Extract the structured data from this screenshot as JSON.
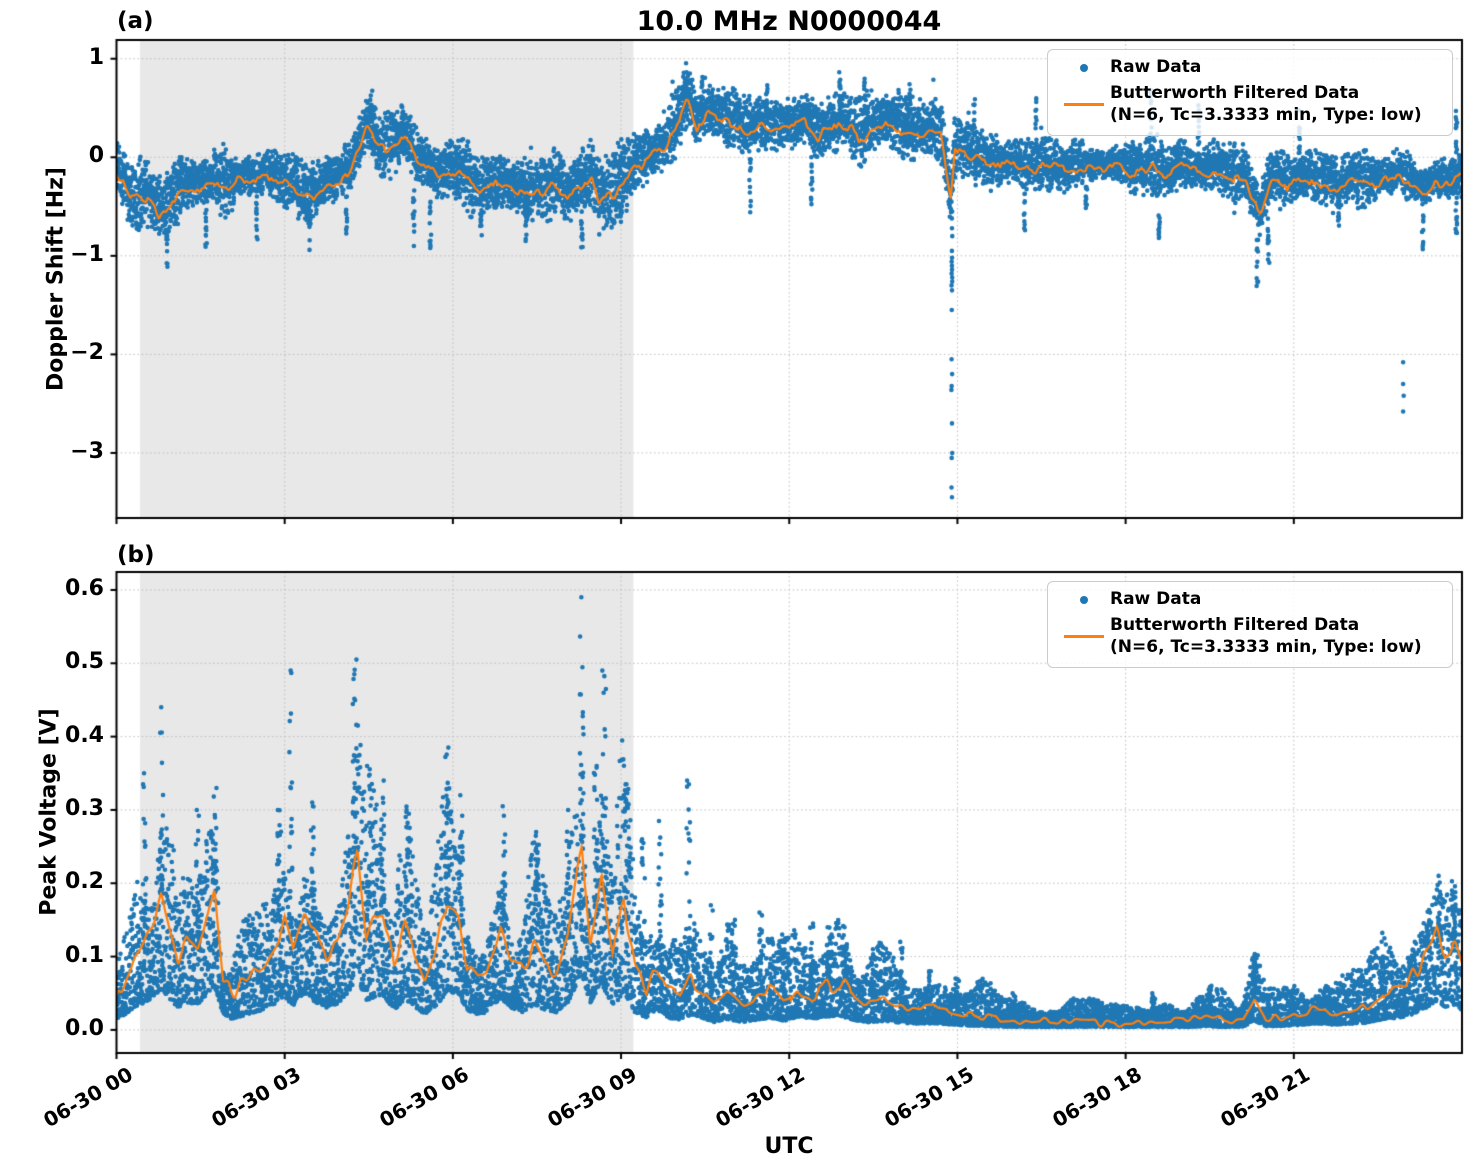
{
  "figure": {
    "title": "10.0 MHz N0000044",
    "xlabel": "UTC",
    "panel_a_tag": "(a)",
    "panel_b_tag": "(b)",
    "shaded_region_hours": {
      "t0": 0.42,
      "t1": 9.22
    }
  },
  "legend": {
    "raw_label": "Raw Data",
    "filtered_label_line1": "Butterworth Filtered Data",
    "filtered_label_line2": "(N=6, Tc=3.3333 min, Type: low)"
  },
  "colors": {
    "raw": "#1f77b4",
    "filtered": "#ff7f0e",
    "shade": "#e8e8e8",
    "grid": "#bdbdbd",
    "spine": "#000000"
  },
  "chart_data": [
    {
      "type": "scatter",
      "name": "doppler",
      "ylabel": "Doppler Shift [Hz]",
      "ylim": [
        -3.66,
        1.19
      ],
      "yticks": [
        1,
        0,
        -1,
        -2,
        -3
      ],
      "ytick_labels": [
        "1",
        "0",
        "−1",
        "−2",
        "−3"
      ],
      "xlim_hours": [
        0,
        24
      ],
      "xticks_hours": [
        0,
        3,
        6,
        9,
        12,
        15,
        18,
        21
      ],
      "xtick_labels": [
        "06-30 00",
        "06-30 03",
        "06-30 06",
        "06-30 09",
        "06-30 12",
        "06-30 15",
        "06-30 18",
        "06-30 21"
      ],
      "series": [
        {
          "name": "Raw Data",
          "style": "scatter"
        },
        {
          "name": "Butterworth Filtered Data (N=6, Tc=3.3333 min, Type: low)",
          "style": "line"
        }
      ],
      "filtered_keypoints": [
        [
          0,
          -0.15
        ],
        [
          0.25,
          -0.42
        ],
        [
          0.5,
          -0.38
        ],
        [
          0.75,
          -0.55
        ],
        [
          0.95,
          -0.5
        ],
        [
          1.1,
          -0.38
        ],
        [
          1.35,
          -0.32
        ],
        [
          1.6,
          -0.3
        ],
        [
          1.8,
          -0.25
        ],
        [
          2.0,
          -0.32
        ],
        [
          2.2,
          -0.22
        ],
        [
          2.45,
          -0.25
        ],
        [
          2.7,
          -0.2
        ],
        [
          2.9,
          -0.28
        ],
        [
          3.1,
          -0.3
        ],
        [
          3.35,
          -0.42
        ],
        [
          3.55,
          -0.38
        ],
        [
          3.8,
          -0.28
        ],
        [
          4.0,
          -0.22
        ],
        [
          4.2,
          -0.1
        ],
        [
          4.45,
          0.28
        ],
        [
          4.6,
          0.2
        ],
        [
          4.8,
          0.05
        ],
        [
          5.0,
          0.12
        ],
        [
          5.15,
          0.2
        ],
        [
          5.35,
          -0.02
        ],
        [
          5.55,
          -0.12
        ],
        [
          5.75,
          -0.2
        ],
        [
          5.95,
          -0.12
        ],
        [
          6.15,
          -0.18
        ],
        [
          6.35,
          -0.3
        ],
        [
          6.6,
          -0.34
        ],
        [
          6.8,
          -0.28
        ],
        [
          7.0,
          -0.32
        ],
        [
          7.2,
          -0.36
        ],
        [
          7.45,
          -0.4
        ],
        [
          7.65,
          -0.32
        ],
        [
          7.85,
          -0.28
        ],
        [
          8.05,
          -0.42
        ],
        [
          8.25,
          -0.3
        ],
        [
          8.45,
          -0.22
        ],
        [
          8.6,
          -0.42
        ],
        [
          8.8,
          -0.38
        ],
        [
          9.0,
          -0.3
        ],
        [
          9.2,
          -0.12
        ],
        [
          9.5,
          -0.02
        ],
        [
          9.8,
          0.12
        ],
        [
          10.0,
          0.3
        ],
        [
          10.2,
          0.6
        ],
        [
          10.35,
          0.32
        ],
        [
          10.55,
          0.45
        ],
        [
          10.75,
          0.38
        ],
        [
          11.0,
          0.32
        ],
        [
          11.25,
          0.28
        ],
        [
          11.5,
          0.3
        ],
        [
          11.75,
          0.26
        ],
        [
          12.0,
          0.28
        ],
        [
          12.25,
          0.36
        ],
        [
          12.5,
          0.22
        ],
        [
          12.75,
          0.28
        ],
        [
          13.0,
          0.32
        ],
        [
          13.25,
          0.18
        ],
        [
          13.5,
          0.3
        ],
        [
          13.75,
          0.34
        ],
        [
          14.0,
          0.28
        ],
        [
          14.25,
          0.2
        ],
        [
          14.5,
          0.26
        ],
        [
          14.7,
          0.22
        ],
        [
          14.88,
          -0.45
        ],
        [
          14.95,
          0.05
        ],
        [
          15.1,
          0.08
        ],
        [
          15.3,
          0.0
        ],
        [
          15.55,
          -0.06
        ],
        [
          15.8,
          -0.1
        ],
        [
          16.0,
          -0.08
        ],
        [
          16.3,
          -0.14
        ],
        [
          16.6,
          -0.1
        ],
        [
          16.9,
          -0.15
        ],
        [
          17.2,
          -0.1
        ],
        [
          17.5,
          -0.13
        ],
        [
          17.8,
          -0.1
        ],
        [
          18.1,
          -0.16
        ],
        [
          18.4,
          -0.1
        ],
        [
          18.7,
          -0.18
        ],
        [
          19.0,
          -0.12
        ],
        [
          19.3,
          -0.18
        ],
        [
          19.6,
          -0.14
        ],
        [
          19.9,
          -0.2
        ],
        [
          20.15,
          -0.25
        ],
        [
          20.4,
          -0.6
        ],
        [
          20.6,
          -0.22
        ],
        [
          20.9,
          -0.28
        ],
        [
          21.2,
          -0.22
        ],
        [
          21.5,
          -0.25
        ],
        [
          21.8,
          -0.3
        ],
        [
          22.1,
          -0.25
        ],
        [
          22.4,
          -0.28
        ],
        [
          22.7,
          -0.24
        ],
        [
          23.0,
          -0.22
        ],
        [
          23.3,
          -0.38
        ],
        [
          23.55,
          -0.25
        ],
        [
          23.8,
          -0.28
        ],
        [
          24,
          -0.18
        ]
      ],
      "band_halfwidth_keypoints": [
        [
          0,
          0.42
        ],
        [
          9,
          0.42
        ],
        [
          10,
          0.4
        ],
        [
          15,
          0.4
        ],
        [
          16,
          0.33
        ],
        [
          24,
          0.33
        ]
      ],
      "up_spikes": [
        [
          4.55,
          0.68
        ],
        [
          5.1,
          0.55
        ],
        [
          10.15,
          0.97
        ],
        [
          10.45,
          0.82
        ],
        [
          11.6,
          0.75
        ],
        [
          12.9,
          0.88
        ],
        [
          13.35,
          0.8
        ],
        [
          14.15,
          0.82
        ],
        [
          15.3,
          0.6
        ],
        [
          16.4,
          0.62
        ],
        [
          18.45,
          0.72
        ],
        [
          19.3,
          0.55
        ],
        [
          21.1,
          0.5
        ],
        [
          23.9,
          0.52
        ]
      ],
      "down_spikes": [
        [
          0.9,
          -1.12
        ],
        [
          1.6,
          -0.97
        ],
        [
          2.5,
          -0.85
        ],
        [
          3.45,
          -0.95
        ],
        [
          4.1,
          -0.8
        ],
        [
          5.3,
          -0.92
        ],
        [
          5.6,
          -1.02
        ],
        [
          6.5,
          -0.88
        ],
        [
          7.3,
          -0.87
        ],
        [
          8.3,
          -0.97
        ],
        [
          9.0,
          -0.8
        ],
        [
          11.3,
          -0.58
        ],
        [
          12.4,
          -0.5
        ],
        [
          16.2,
          -0.76
        ],
        [
          17.3,
          -0.6
        ],
        [
          18.6,
          -0.82
        ],
        [
          20.35,
          -1.35
        ],
        [
          20.55,
          -1.12
        ],
        [
          21.8,
          -0.7
        ],
        [
          23.3,
          -0.97
        ],
        [
          23.9,
          -0.8
        ]
      ],
      "dropout_column": {
        "t": 14.9,
        "values": [
          -0.55,
          -0.62,
          -0.72,
          -0.8,
          -0.95,
          -1.02,
          -1.06,
          -1.1,
          -1.14,
          -1.18,
          -1.22,
          -1.26,
          -1.3,
          -1.35,
          -1.55,
          -2.05,
          -2.2,
          -2.32,
          -2.36,
          -2.7,
          -3.0,
          -3.05,
          -3.35,
          -3.45
        ]
      },
      "isolated_outliers": [
        [
          22.95,
          -2.08
        ],
        [
          22.95,
          -2.3
        ],
        [
          22.96,
          -2.42
        ],
        [
          22.95,
          -2.58
        ]
      ]
    },
    {
      "type": "scatter",
      "name": "peak_voltage",
      "ylabel": "Peak Voltage [V]",
      "ylim": [
        -0.0315,
        0.6245
      ],
      "yticks": [
        0.6,
        0.5,
        0.4,
        0.3,
        0.2,
        0.1,
        0.0
      ],
      "ytick_labels": [
        "0.6",
        "0.5",
        "0.4",
        "0.3",
        "0.2",
        "0.1",
        "0.0"
      ],
      "xlim_hours": [
        0,
        24
      ],
      "xticks_hours": [
        0,
        3,
        6,
        9,
        12,
        15,
        18,
        21
      ],
      "xtick_labels": [
        "06-30 00",
        "06-30 03",
        "06-30 06",
        "06-30 09",
        "06-30 12",
        "06-30 15",
        "06-30 18",
        "06-30 21"
      ],
      "series": [
        {
          "name": "Raw Data",
          "style": "scatter"
        },
        {
          "name": "Butterworth Filtered Data (N=6, Tc=3.3333 min, Type: low)",
          "style": "line"
        }
      ],
      "filtered_keypoints": [
        [
          0,
          0.045
        ],
        [
          0.2,
          0.08
        ],
        [
          0.4,
          0.11
        ],
        [
          0.6,
          0.14
        ],
        [
          0.8,
          0.185
        ],
        [
          0.95,
          0.14
        ],
        [
          1.1,
          0.1
        ],
        [
          1.25,
          0.125
        ],
        [
          1.45,
          0.115
        ],
        [
          1.6,
          0.16
        ],
        [
          1.75,
          0.2
        ],
        [
          1.9,
          0.07
        ],
        [
          2.05,
          0.05
        ],
        [
          2.2,
          0.06
        ],
        [
          2.4,
          0.075
        ],
        [
          2.6,
          0.09
        ],
        [
          2.8,
          0.115
        ],
        [
          3.0,
          0.15
        ],
        [
          3.15,
          0.11
        ],
        [
          3.35,
          0.17
        ],
        [
          3.55,
          0.125
        ],
        [
          3.75,
          0.1
        ],
        [
          3.95,
          0.12
        ],
        [
          4.15,
          0.175
        ],
        [
          4.3,
          0.245
        ],
        [
          4.45,
          0.12
        ],
        [
          4.6,
          0.15
        ],
        [
          4.75,
          0.16
        ],
        [
          4.95,
          0.09
        ],
        [
          5.15,
          0.14
        ],
        [
          5.35,
          0.1
        ],
        [
          5.5,
          0.07
        ],
        [
          5.7,
          0.11
        ],
        [
          5.9,
          0.17
        ],
        [
          6.1,
          0.165
        ],
        [
          6.25,
          0.09
        ],
        [
          6.45,
          0.07
        ],
        [
          6.6,
          0.08
        ],
        [
          6.85,
          0.145
        ],
        [
          7.05,
          0.1
        ],
        [
          7.25,
          0.08
        ],
        [
          7.45,
          0.115
        ],
        [
          7.65,
          0.09
        ],
        [
          7.85,
          0.08
        ],
        [
          8.05,
          0.125
        ],
        [
          8.3,
          0.255
        ],
        [
          8.45,
          0.12
        ],
        [
          8.65,
          0.215
        ],
        [
          8.85,
          0.1
        ],
        [
          9.05,
          0.175
        ],
        [
          9.25,
          0.08
        ],
        [
          9.45,
          0.055
        ],
        [
          9.65,
          0.09
        ],
        [
          9.85,
          0.055
        ],
        [
          10.05,
          0.045
        ],
        [
          10.25,
          0.07
        ],
        [
          10.45,
          0.055
        ],
        [
          10.65,
          0.035
        ],
        [
          10.9,
          0.05
        ],
        [
          11.15,
          0.035
        ],
        [
          11.4,
          0.045
        ],
        [
          11.65,
          0.055
        ],
        [
          11.9,
          0.04
        ],
        [
          12.15,
          0.06
        ],
        [
          12.4,
          0.05
        ],
        [
          12.65,
          0.06
        ],
        [
          12.9,
          0.065
        ],
        [
          13.15,
          0.045
        ],
        [
          13.4,
          0.035
        ],
        [
          13.7,
          0.04
        ],
        [
          14.0,
          0.032
        ],
        [
          14.3,
          0.028
        ],
        [
          14.6,
          0.03
        ],
        [
          15.0,
          0.022
        ],
        [
          15.4,
          0.018
        ],
        [
          15.8,
          0.015
        ],
        [
          16.2,
          0.013
        ],
        [
          16.6,
          0.012
        ],
        [
          17.0,
          0.011
        ],
        [
          17.5,
          0.009
        ],
        [
          18.0,
          0.009
        ],
        [
          18.5,
          0.011
        ],
        [
          19.0,
          0.012
        ],
        [
          19.4,
          0.016
        ],
        [
          19.8,
          0.013
        ],
        [
          20.1,
          0.015
        ],
        [
          20.3,
          0.042
        ],
        [
          20.5,
          0.016
        ],
        [
          20.8,
          0.018
        ],
        [
          21.1,
          0.022
        ],
        [
          21.4,
          0.03
        ],
        [
          21.7,
          0.024
        ],
        [
          22.0,
          0.028
        ],
        [
          22.3,
          0.032
        ],
        [
          22.6,
          0.05
        ],
        [
          22.9,
          0.055
        ],
        [
          23.1,
          0.07
        ],
        [
          23.35,
          0.1
        ],
        [
          23.55,
          0.13
        ],
        [
          23.7,
          0.105
        ],
        [
          23.85,
          0.115
        ],
        [
          24,
          0.09
        ]
      ],
      "up_spikes": [
        [
          0.5,
          0.35
        ],
        [
          0.8,
          0.44
        ],
        [
          1.45,
          0.3
        ],
        [
          1.75,
          0.33
        ],
        [
          2.9,
          0.3
        ],
        [
          3.1,
          0.49
        ],
        [
          3.5,
          0.31
        ],
        [
          4.25,
          0.505
        ],
        [
          4.5,
          0.36
        ],
        [
          4.75,
          0.34
        ],
        [
          5.2,
          0.3
        ],
        [
          5.9,
          0.385
        ],
        [
          6.15,
          0.32
        ],
        [
          6.9,
          0.305
        ],
        [
          7.5,
          0.27
        ],
        [
          8.05,
          0.3
        ],
        [
          8.3,
          0.59
        ],
        [
          8.55,
          0.36
        ],
        [
          8.7,
          0.49
        ],
        [
          9.1,
          0.335
        ],
        [
          9.4,
          0.26
        ],
        [
          9.7,
          0.285
        ],
        [
          10.2,
          0.34
        ],
        [
          10.6,
          0.17
        ],
        [
          11.0,
          0.15
        ],
        [
          11.5,
          0.16
        ],
        [
          11.9,
          0.13
        ],
        [
          12.4,
          0.145
        ],
        [
          12.7,
          0.14
        ],
        [
          13.0,
          0.14
        ],
        [
          13.5,
          0.1
        ],
        [
          14.0,
          0.12
        ],
        [
          14.5,
          0.08
        ],
        [
          15.0,
          0.07
        ],
        [
          16.0,
          0.05
        ],
        [
          17.5,
          0.04
        ],
        [
          18.5,
          0.05
        ],
        [
          19.5,
          0.06
        ],
        [
          20.3,
          0.1
        ],
        [
          22.6,
          0.1
        ],
        [
          23.15,
          0.12
        ],
        [
          23.4,
          0.16
        ],
        [
          23.6,
          0.21
        ],
        [
          23.85,
          0.19
        ]
      ]
    }
  ]
}
